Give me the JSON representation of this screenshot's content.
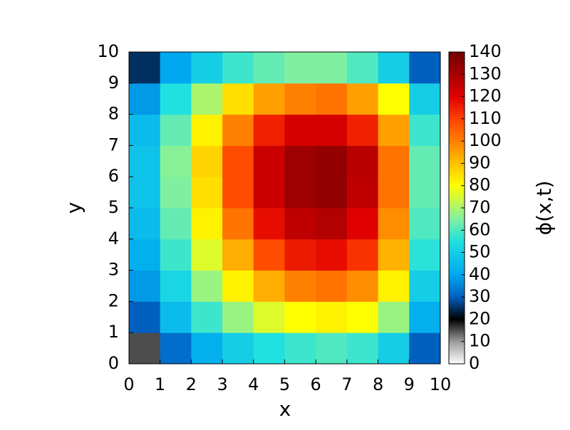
{
  "chart_data": {
    "type": "heatmap",
    "xlabel": "x",
    "ylabel": "y",
    "cblabel": "ϕ(x,t)",
    "x": [
      0.5,
      1.5,
      2.5,
      3.5,
      4.5,
      5.5,
      6.5,
      7.5,
      8.5,
      9.5
    ],
    "y": [
      0.5,
      1.5,
      2.5,
      3.5,
      4.5,
      5.5,
      6.5,
      7.5,
      8.5,
      9.5
    ],
    "z": [
      [
        15,
        32,
        42,
        50,
        55,
        58,
        60,
        58,
        50,
        30
      ],
      [
        30,
        45,
        58,
        68,
        76,
        80,
        82,
        80,
        68,
        42
      ],
      [
        38,
        52,
        68,
        82,
        93,
        100,
        102,
        98,
        82,
        50
      ],
      [
        42,
        58,
        76,
        93,
        108,
        116,
        118,
        112,
        92,
        56
      ],
      [
        45,
        62,
        82,
        102,
        118,
        126,
        128,
        120,
        98,
        60
      ],
      [
        47,
        65,
        85,
        108,
        124,
        132,
        134,
        126,
        102,
        62
      ],
      [
        47,
        66,
        87,
        108,
        124,
        132,
        134,
        127,
        102,
        62
      ],
      [
        45,
        62,
        82,
        100,
        115,
        122,
        122,
        115,
        95,
        58
      ],
      [
        38,
        55,
        70,
        85,
        95,
        100,
        102,
        95,
        80,
        50
      ],
      [
        25,
        40,
        50,
        58,
        62,
        65,
        65,
        60,
        50,
        30
      ]
    ],
    "xlim": [
      0,
      10
    ],
    "ylim": [
      0,
      10
    ],
    "xticks": [
      0,
      1,
      2,
      3,
      4,
      5,
      6,
      7,
      8,
      9,
      10
    ],
    "yticks": [
      0,
      1,
      2,
      3,
      4,
      5,
      6,
      7,
      8,
      9,
      10
    ],
    "clim": [
      0,
      140
    ],
    "cbticks": [
      0,
      10,
      20,
      30,
      40,
      50,
      60,
      70,
      80,
      90,
      100,
      110,
      120,
      130,
      140
    ],
    "colormap": [
      [
        0,
        "#ffffff"
      ],
      [
        10,
        "#9a9a9a"
      ],
      [
        20,
        "#000000"
      ],
      [
        30,
        "#0060c0"
      ],
      [
        40,
        "#00a8f0"
      ],
      [
        55,
        "#20e0e0"
      ],
      [
        65,
        "#80f0a0"
      ],
      [
        80,
        "#ffff00"
      ],
      [
        95,
        "#ffa000"
      ],
      [
        110,
        "#ff4000"
      ],
      [
        120,
        "#e00000"
      ],
      [
        140,
        "#700000"
      ]
    ]
  }
}
